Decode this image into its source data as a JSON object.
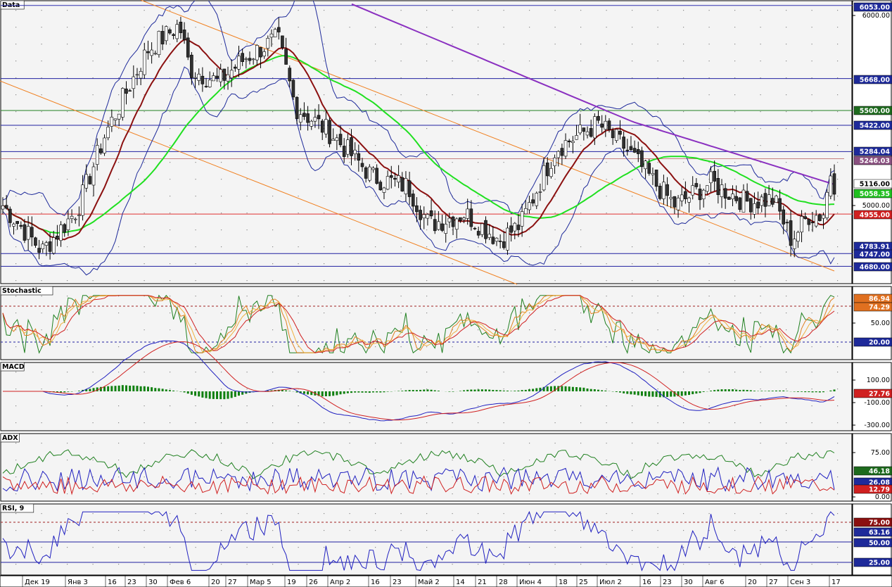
{
  "chart_data": {
    "type": "candlestick",
    "panels": [
      {
        "name": "Data",
        "ticks": [
          "6000.00",
          "5000.00"
        ],
        "hlines": [
          {
            "label": "6053.00",
            "value": 6053,
            "color": "#3030b0"
          },
          {
            "label": "5668.00",
            "value": 5668,
            "color": "#2020a0"
          },
          {
            "label": "5500.00",
            "value": 5500,
            "color": "#208020"
          },
          {
            "label": "5422.00",
            "value": 5422,
            "color": "#2020a0"
          },
          {
            "label": "5284.04",
            "value": 5284,
            "color": "#2020a0"
          },
          {
            "label": "4955.00",
            "value": 4955,
            "color": "#e03030"
          },
          {
            "label": "4747.00",
            "value": 4747,
            "color": "#2020a0"
          },
          {
            "label": "4680.00",
            "value": 4680,
            "color": "#2020a0"
          }
        ],
        "badges": [
          {
            "label": "6053.00",
            "value": 6053,
            "bg": "#1e2a9a",
            "fg": "#fff"
          },
          {
            "label": "5668.00",
            "value": 5668,
            "bg": "#1e2a9a",
            "fg": "#fff"
          },
          {
            "label": "5500.00",
            "value": 5500,
            "bg": "#1e6b1e",
            "fg": "#fff"
          },
          {
            "label": "5422.00",
            "value": 5422,
            "bg": "#1e2a9a",
            "fg": "#fff"
          },
          {
            "label": "5284.04",
            "value": 5284,
            "bg": "#1e2a9a",
            "fg": "#fff"
          },
          {
            "label": "5246.03",
            "value": 5246,
            "bg": "#8a5080",
            "fg": "#fff"
          },
          {
            "label": "5116.00",
            "value": 5116,
            "bg": "#ffffff",
            "fg": "#000"
          },
          {
            "label": "5058.35",
            "value": 5058,
            "bg": "#20c020",
            "fg": "#fff"
          },
          {
            "label": "4955.00",
            "value": 4955,
            "bg": "#d02020",
            "fg": "#fff"
          },
          {
            "label": "4783.91",
            "value": 4784,
            "bg": "#1e2a9a",
            "fg": "#fff"
          },
          {
            "label": "4747.00",
            "value": 4747,
            "bg": "#1e2a9a",
            "fg": "#fff"
          },
          {
            "label": "4680.00",
            "value": 4680,
            "bg": "#1e2a9a",
            "fg": "#fff"
          }
        ]
      },
      {
        "name": "Stochastic",
        "ticks": [
          "50.00"
        ],
        "badges": [
          {
            "label": "86.94",
            "bg": "#e07020",
            "fg": "#fff"
          },
          {
            "label": "74.29",
            "bg": "#e07020",
            "fg": "#fff"
          },
          {
            "label": "20.00",
            "bg": "#1e2a9a",
            "fg": "#fff"
          }
        ]
      },
      {
        "name": "MACD",
        "ticks": [
          "100.00",
          "-100.00",
          "-300.00"
        ],
        "badges": [
          {
            "label": "27.76",
            "bg": "#d02020",
            "fg": "#fff"
          }
        ]
      },
      {
        "name": "ADX",
        "ticks": [
          "75.00",
          "0.00"
        ],
        "badges": [
          {
            "label": "46.18",
            "bg": "#1e6b1e",
            "fg": "#fff"
          },
          {
            "label": "26.08",
            "bg": "#1e2a9a",
            "fg": "#fff"
          },
          {
            "label": "12.79",
            "bg": "#d02020",
            "fg": "#fff"
          }
        ]
      },
      {
        "name": "RSI, 9",
        "ticks": [],
        "badges": [
          {
            "label": "75.00",
            "bg": "#8b1010",
            "fg": "#fff"
          },
          {
            "label": "63.16",
            "bg": "#1e2a9a",
            "fg": "#fff"
          },
          {
            "label": "50.00",
            "bg": "#1e2a9a",
            "fg": "#fff"
          },
          {
            "label": "25.00",
            "bg": "#1e2a9a",
            "fg": "#fff"
          }
        ]
      }
    ],
    "x_labels": [
      "Дек 19",
      "Янв 3",
      "16",
      "23",
      "30",
      "Фев 6",
      "20",
      "27",
      "Мар 5",
      "19",
      "26",
      "Апр 2",
      "16",
      "23",
      "Май 2",
      "14",
      "21",
      "28",
      "Июн 4",
      "18",
      "25",
      "Июл 2",
      "16",
      "23",
      "30",
      "Авг 6",
      "20",
      "27",
      "Сен 3",
      "17"
    ],
    "last_close": 5116,
    "colors": {
      "bull": "#ffffff",
      "bear": "#303030",
      "bollinger": "#1e2a9a",
      "ma_fast": "#8b1010",
      "ma_mid": "#20e020",
      "ma_slow": "#8a30c0",
      "channel": "#f08020"
    }
  }
}
